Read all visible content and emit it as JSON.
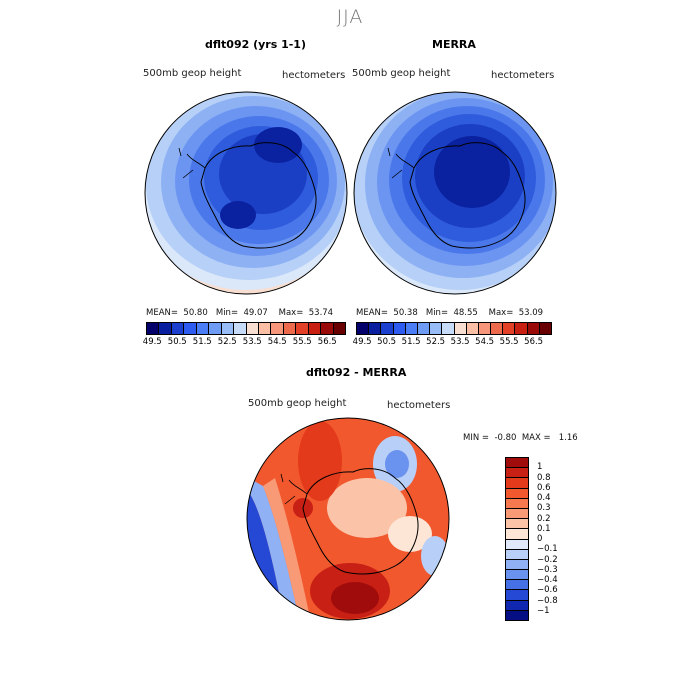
{
  "figure": {
    "title": "JJA"
  },
  "panels": [
    {
      "title": "dflt092 (yrs 1-1)",
      "left_label": "500mb  geop  height",
      "right_label": "hectometers",
      "mean_label": "MEAN=",
      "mean": "50.80",
      "min_label": "Min=",
      "min": "49.07",
      "max_label": "Max=",
      "max": "53.74"
    },
    {
      "title": "MERRA",
      "left_label": "500mb  geop  height",
      "right_label": "hectometers",
      "mean_label": "MEAN=",
      "mean": "50.38",
      "min_label": "Min=",
      "min": "48.55",
      "max_label": "Max=",
      "max": "53.09"
    }
  ],
  "colorbar_top": {
    "colors": [
      "#04006b",
      "#0a1ea0",
      "#1b3fcf",
      "#2e5cf0",
      "#4b7ef6",
      "#6e9cf5",
      "#98bdf6",
      "#c5dbf8",
      "#f7ded0",
      "#fbbfa6",
      "#f6967a",
      "#ee6a4c",
      "#e24128",
      "#c71f12",
      "#9a0a08",
      "#680000"
    ],
    "tick_labels": [
      "49.5",
      "50.5",
      "51.5",
      "52.5",
      "53.5",
      "54.5",
      "55.5",
      "56.5"
    ]
  },
  "difference_panel": {
    "title": "dflt092 - MERRA",
    "left_label": "500mb  geop  height",
    "right_label": "hectometers",
    "min_label": "MIN =",
    "min": "-0.80",
    "max_label": "MAX =",
    "max": "1.16"
  },
  "colorbar_diff": {
    "colors_top_to_bottom": [
      "#a00c0c",
      "#c82014",
      "#e43a1c",
      "#f2582e",
      "#f5784e",
      "#f89a76",
      "#fbc3a8",
      "#fde6d6",
      "#dfe9fa",
      "#b8cff7",
      "#90b2f4",
      "#6a92ef",
      "#4570e6",
      "#2549d4",
      "#1028b0",
      "#060e84"
    ],
    "tick_labels": [
      "1",
      "0.8",
      "0.6",
      "0.4",
      "0.3",
      "0.2",
      "0.1",
      "0",
      "−0.1",
      "−0.2",
      "−0.3",
      "−0.4",
      "−0.6",
      "−0.8",
      "−1"
    ]
  }
}
